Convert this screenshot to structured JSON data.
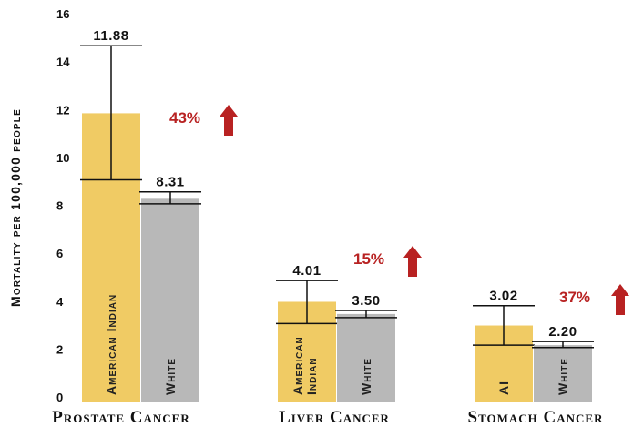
{
  "chart_data": {
    "type": "bar",
    "ylabel": "Mortality per 100,000 people",
    "ylim": [
      0,
      16
    ],
    "yticks": [
      0,
      2,
      4,
      6,
      8,
      10,
      12,
      14,
      16
    ],
    "grid": false,
    "colors": {
      "american_indian": "#f0cb64",
      "white": "#b8b8b8",
      "increase": "#b82222"
    },
    "categories": [
      {
        "name": "Prostate Cancer",
        "increase": "43%",
        "bars": [
          {
            "label_lines": [
              "American Indian"
            ],
            "value": 11.88,
            "value_label": "11.88",
            "ci": [
              9.1,
              14.7
            ],
            "group": "american_indian"
          },
          {
            "label_lines": [
              "White"
            ],
            "value": 8.31,
            "value_label": "8.31",
            "ci": [
              8.1,
              8.6
            ],
            "group": "white"
          }
        ]
      },
      {
        "name": "Liver Cancer",
        "increase": "15%",
        "bars": [
          {
            "label_lines": [
              "American",
              "Indian"
            ],
            "value": 4.01,
            "value_label": "4.01",
            "ci": [
              3.1,
              4.9
            ],
            "group": "american_indian"
          },
          {
            "label_lines": [
              "White"
            ],
            "value": 3.5,
            "value_label": "3.50",
            "ci": [
              3.35,
              3.65
            ],
            "group": "white"
          }
        ]
      },
      {
        "name": "Stomach Cancer",
        "increase": "37%",
        "bars": [
          {
            "label_lines": [
              "AI"
            ],
            "value": 3.02,
            "value_label": "3.02",
            "ci": [
              2.2,
              3.85
            ],
            "group": "american_indian"
          },
          {
            "label_lines": [
              "White"
            ],
            "value": 2.2,
            "value_label": "2.20",
            "ci": [
              2.1,
              2.35
            ],
            "group": "white"
          }
        ]
      }
    ]
  }
}
